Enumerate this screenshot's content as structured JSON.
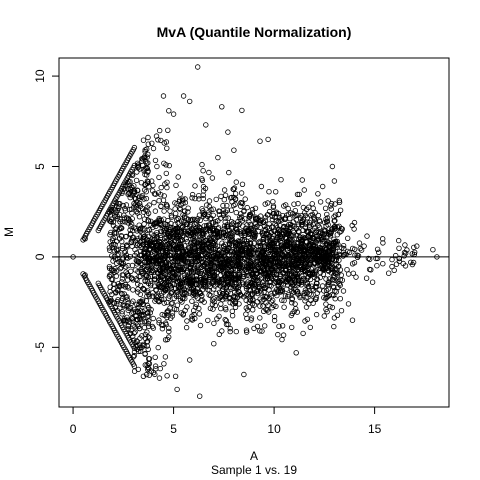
{
  "chart_data": {
    "type": "scatter",
    "title": "MvA (Quantile Normalization)",
    "xlabel": "A",
    "subtitle": "Sample 1 vs. 19",
    "ylabel": "M",
    "xlim": [
      -0.7,
      18.7
    ],
    "ylim": [
      -8.3,
      11.0
    ],
    "xticks": [
      0,
      5,
      10,
      15
    ],
    "yticks": [
      -5,
      0,
      5,
      10
    ],
    "hline": 0,
    "grid": false,
    "legend": "none",
    "marker": "open-circle",
    "color": "#000000",
    "outliers": [
      {
        "x": 6.2,
        "y": 10.5
      },
      {
        "x": 4.5,
        "y": 8.9
      },
      {
        "x": 5.5,
        "y": 8.9
      },
      {
        "x": 5.8,
        "y": 8.6
      },
      {
        "x": 7.4,
        "y": 8.3
      },
      {
        "x": 8.4,
        "y": 8.1
      },
      {
        "x": 5.0,
        "y": 7.9
      },
      {
        "x": 6.6,
        "y": 7.3
      },
      {
        "x": 7.7,
        "y": 6.9
      },
      {
        "x": 9.3,
        "y": 6.4
      },
      {
        "x": 9.7,
        "y": 6.5
      },
      {
        "x": 8.0,
        "y": 5.9
      },
      {
        "x": 12.9,
        "y": 5.0
      },
      {
        "x": 11.5,
        "y": 3.7
      },
      {
        "x": 13.0,
        "y": 4.2
      },
      {
        "x": 14.0,
        "y": 1.9
      },
      {
        "x": 15.4,
        "y": 1.0
      },
      {
        "x": 16.2,
        "y": 0.9
      },
      {
        "x": 17.1,
        "y": 0.6
      },
      {
        "x": 17.9,
        "y": 0.4
      },
      {
        "x": 18.1,
        "y": 0.0
      },
      {
        "x": 16.8,
        "y": -0.3
      },
      {
        "x": 15.7,
        "y": -0.9
      },
      {
        "x": 14.9,
        "y": -1.4
      },
      {
        "x": 13.7,
        "y": -2.6
      },
      {
        "x": 13.9,
        "y": -3.5
      },
      {
        "x": 11.1,
        "y": -5.3
      },
      {
        "x": 8.5,
        "y": -6.5
      },
      {
        "x": 6.3,
        "y": -7.7
      },
      {
        "x": 5.1,
        "y": -6.6
      },
      {
        "x": 4.3,
        "y": -6.7
      },
      {
        "x": 3.5,
        "y": -6.6
      },
      {
        "x": 4.0,
        "y": -6.4
      },
      {
        "x": 5.8,
        "y": -5.7
      },
      {
        "x": 7.0,
        "y": -4.8
      },
      {
        "x": 9.4,
        "y": -4.1
      },
      {
        "x": 11.8,
        "y": -3.9
      },
      {
        "x": 12.9,
        "y": -2.8
      },
      {
        "x": 0.0,
        "y": 0.0
      },
      {
        "x": 0.6,
        "y": 1.0
      },
      {
        "x": 0.6,
        "y": -1.0
      },
      {
        "x": 11.0,
        "y": -3.0
      }
    ]
  }
}
